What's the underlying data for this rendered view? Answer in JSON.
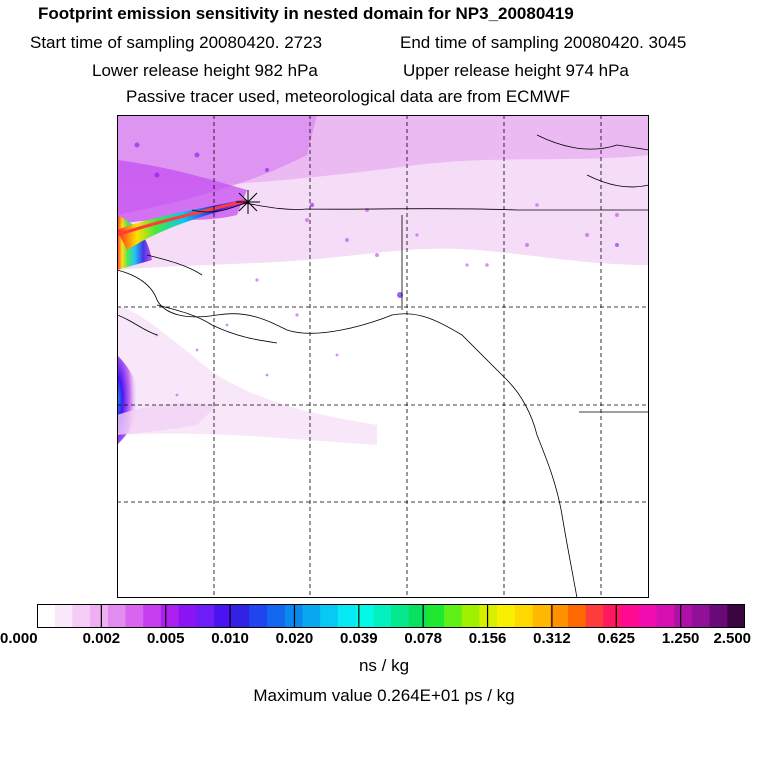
{
  "header": {
    "title": "Footprint emission sensitivity in nested domain for NP3_20080419",
    "start_time": "Start time of sampling 20080420.  2723",
    "end_time": "End time of sampling 20080420.  3045",
    "lower_height": "Lower release height  982 hPa",
    "upper_height": "Upper release height  974 hPa",
    "tracer_info": "Passive tracer used, meteorological data are from ECMWF"
  },
  "colorbar": {
    "tick_labels": [
      "0.000",
      "0.002",
      "0.005",
      "0.010",
      "0.020",
      "0.039",
      "0.078",
      "0.156",
      "0.312",
      "0.625",
      "1.250",
      "2.500"
    ],
    "colors": [
      "#ffffff",
      "#fbe8fb",
      "#f5ccf5",
      "#eeb0f2",
      "#e38cef",
      "#d865f0",
      "#c63ef0",
      "#ae1ff2",
      "#8b14f5",
      "#6e1cf8",
      "#4a14f2",
      "#3222e6",
      "#1e45f0",
      "#1268ee",
      "#0a88ee",
      "#08a8f0",
      "#08c8f4",
      "#06e8f4",
      "#04f8e8",
      "#04f0c0",
      "#06e890",
      "#08e060",
      "#20e830",
      "#60f018",
      "#a0f000",
      "#d8f000",
      "#f8f000",
      "#ffd800",
      "#ffb800",
      "#ff9000",
      "#ff6800",
      "#ff3c3c",
      "#ff1860",
      "#ff0a90",
      "#f00cb0",
      "#d410b0",
      "#b010a8",
      "#901098",
      "#6a0a78",
      "#3a0440"
    ],
    "units": "ns / kg",
    "max_value": "Maximum value  0.264E+01 ps / kg"
  }
}
